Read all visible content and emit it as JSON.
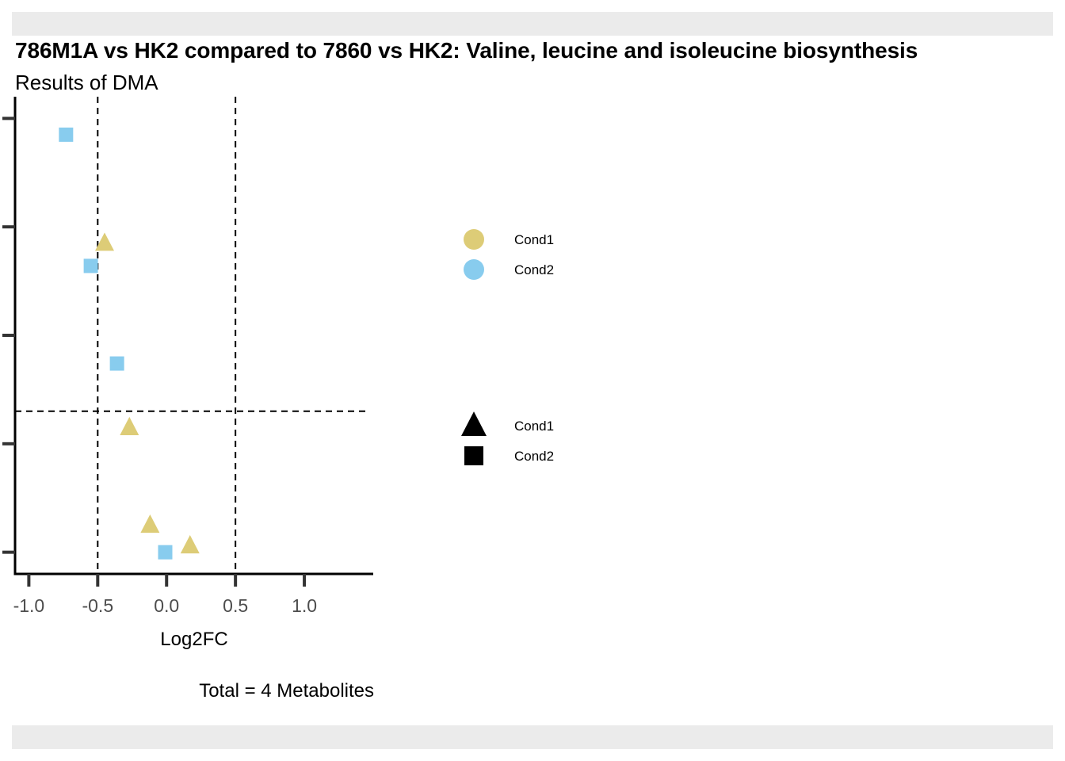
{
  "title": "786M1A vs HK2 compared to 7860 vs HK2: Valine, leucine and isoleucine biosynthesis",
  "subtitle": "Results of DMA",
  "caption": "Total = 4 Metabolites",
  "chart_data": {
    "type": "scatter",
    "xlabel": "Log2FC",
    "ylabel": "",
    "xlim": [
      -1.1,
      1.5
    ],
    "x_ticks": [
      -1.0,
      -0.5,
      0.0,
      0.5,
      1.0
    ],
    "x_tick_labels": [
      "-1.0",
      "-0.5",
      "0.0",
      "0.5",
      "1.0"
    ],
    "ylim": [
      0.8,
      5.2
    ],
    "y_ticks": [
      1,
      2,
      3,
      4,
      5
    ],
    "y_tick_labels": [
      "",
      "",
      "",
      "",
      ""
    ],
    "vlines": [
      -0.5,
      0.5
    ],
    "hline": 2.3,
    "line_style": "dashed",
    "grid": false,
    "colors": {
      "Cond1": "#DDCC77",
      "Cond2": "#88CCEE"
    },
    "shapes": {
      "Cond1": "triangle",
      "Cond2": "square"
    },
    "series": [
      {
        "name": "Cond1",
        "shape": "triangle",
        "color": "#DDCC77",
        "points": [
          {
            "x": -0.45,
            "y": 3.85
          },
          {
            "x": -0.27,
            "y": 2.15
          },
          {
            "x": -0.12,
            "y": 1.25
          },
          {
            "x": 0.17,
            "y": 1.06
          }
        ]
      },
      {
        "name": "Cond2",
        "shape": "square",
        "color": "#88CCEE",
        "points": [
          {
            "x": -0.73,
            "y": 4.85
          },
          {
            "x": -0.55,
            "y": 3.64
          },
          {
            "x": -0.36,
            "y": 2.74
          },
          {
            "x": -0.01,
            "y": 1.0
          }
        ]
      }
    ],
    "legend": {
      "placement": "right",
      "color_entries": [
        {
          "label": "Cond1",
          "color": "#DDCC77"
        },
        {
          "label": "Cond2",
          "color": "#88CCEE"
        }
      ],
      "shape_entries": [
        {
          "label": "Cond1",
          "shape": "triangle"
        },
        {
          "label": "Cond2",
          "shape": "square"
        }
      ]
    }
  }
}
